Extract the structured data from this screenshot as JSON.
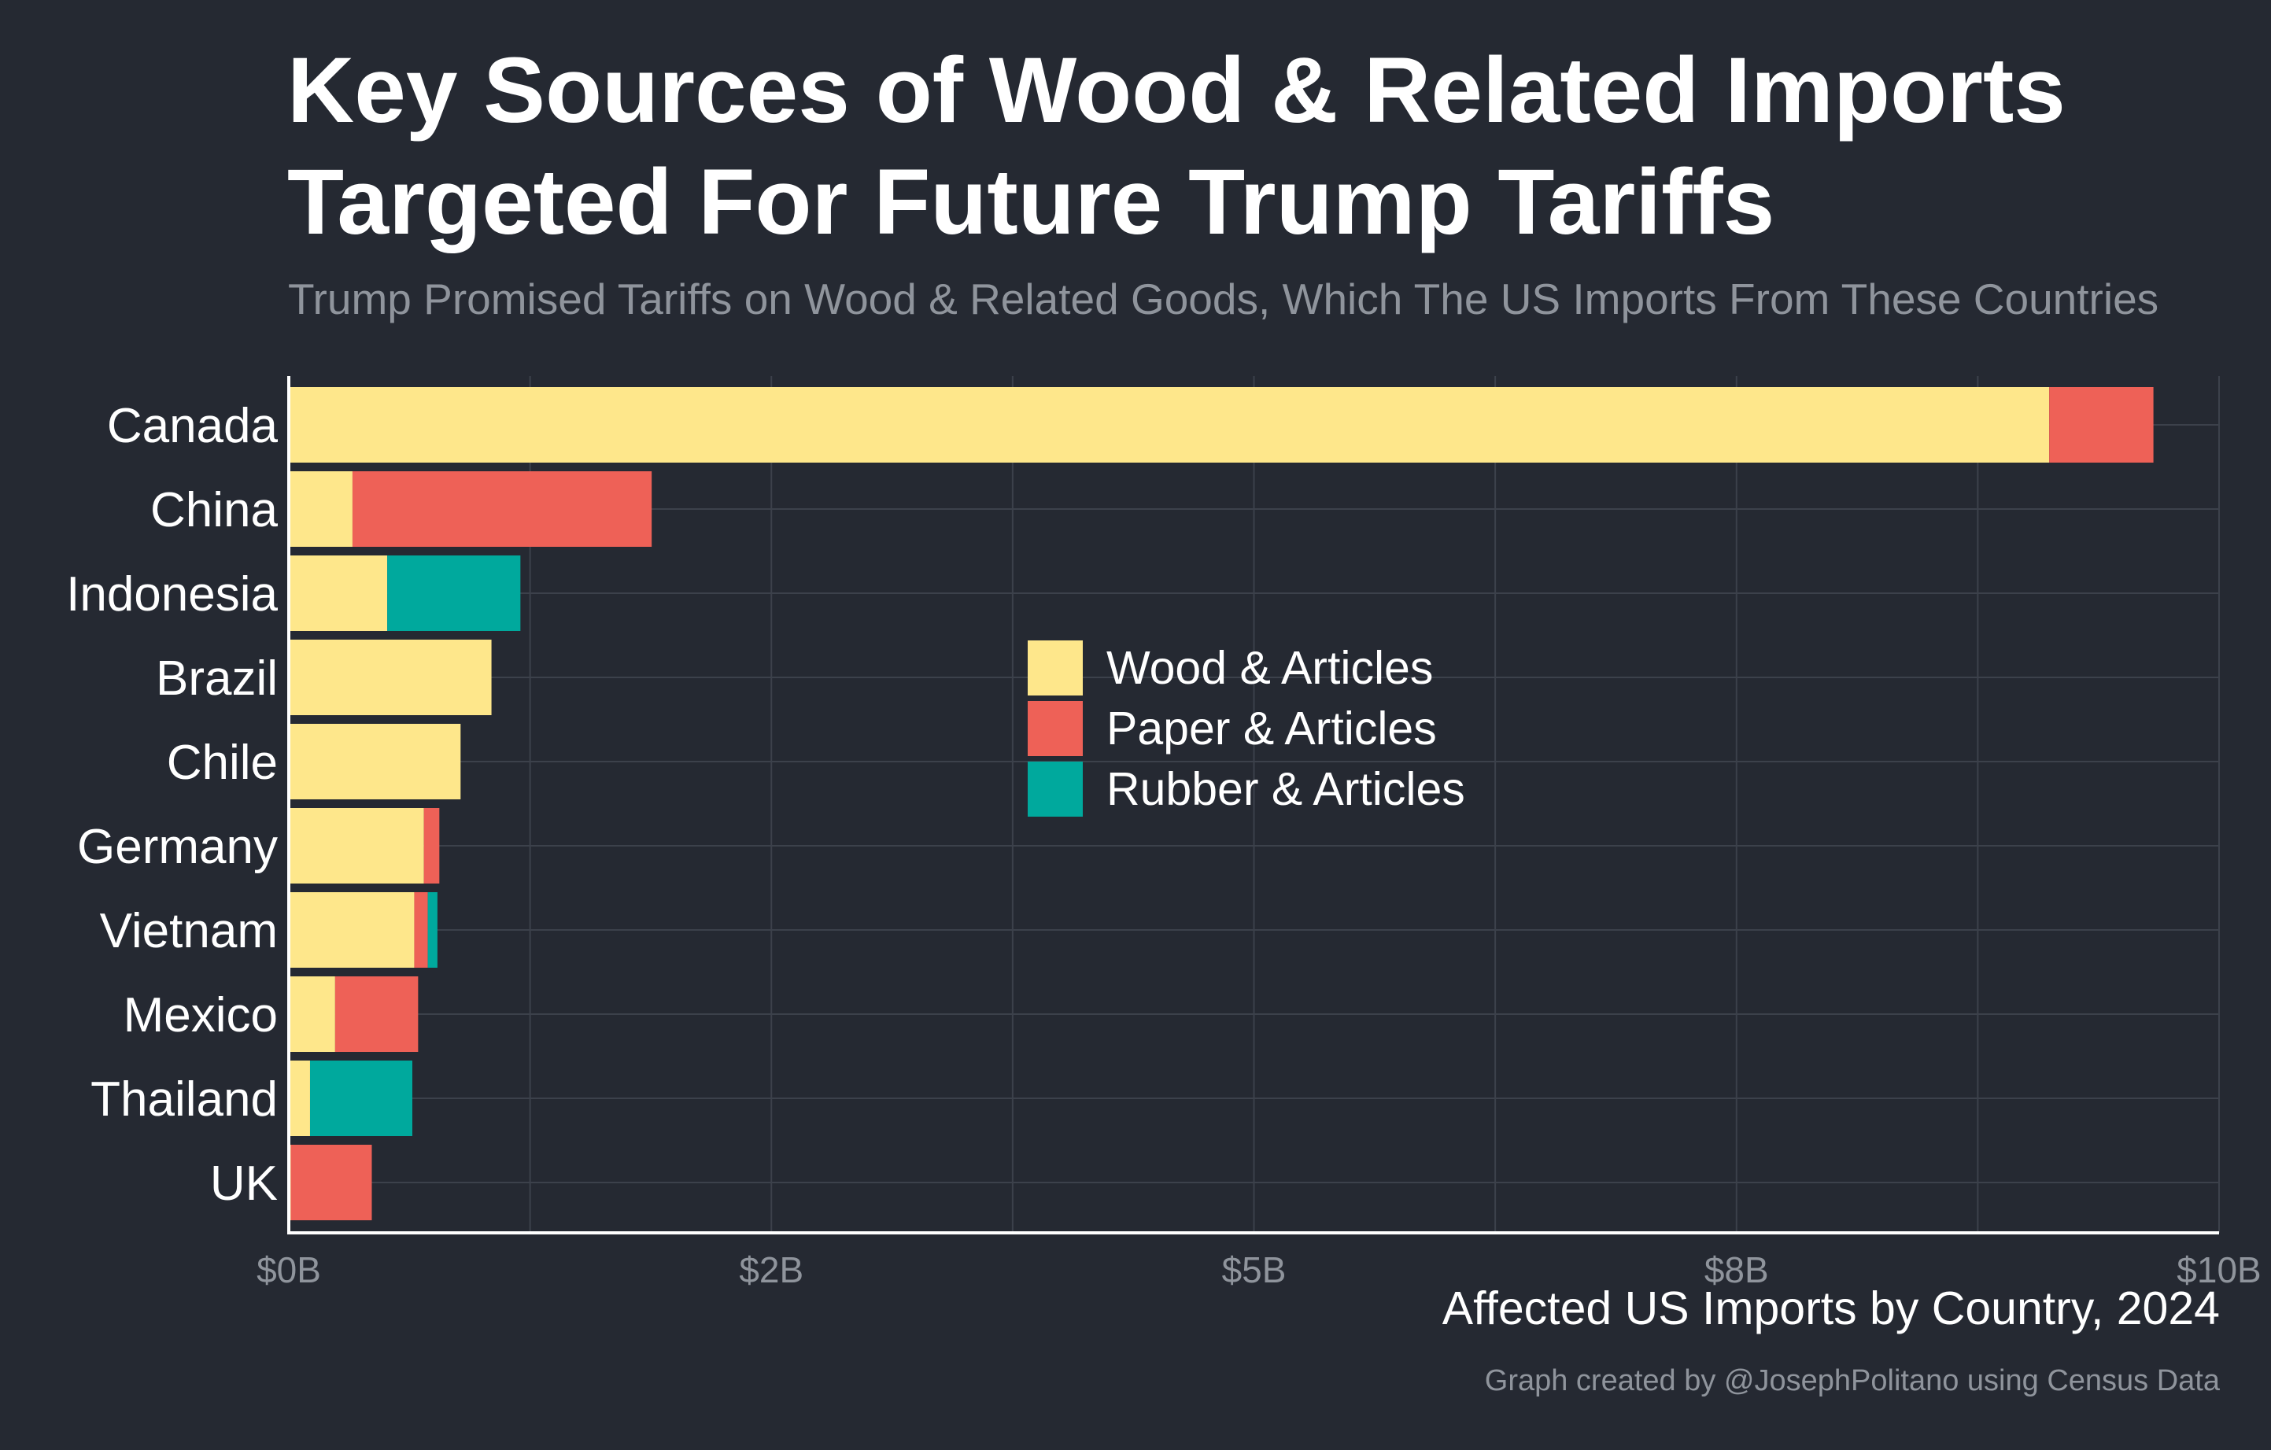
{
  "title": "Key Sources of Wood & Related Imports Targeted For Future Trump Tariffs",
  "subtitle": "Trump Promised Tariffs on Wood & Related Goods, Which The US Imports From These Countries",
  "caption": "Graph created by @JosephPolitano using Census Data",
  "colors": {
    "background": "#252932",
    "grid": "#3c414b",
    "axis": "#ffffff",
    "tick_text": "#8f949c",
    "wood": "#FEE78B",
    "paper": "#EE6157",
    "rubber": "#00A99D"
  },
  "chart_data": {
    "type": "bar",
    "orientation": "horizontal",
    "stacked": true,
    "categories": [
      "Canada",
      "China",
      "Indonesia",
      "Brazil",
      "Chile",
      "Germany",
      "Vietnam",
      "Mexico",
      "Thailand",
      "UK"
    ],
    "series": [
      {
        "name": "Wood & Articles",
        "color": "#FEE78B",
        "values": [
          9.12,
          0.33,
          0.51,
          1.05,
          0.89,
          0.7,
          0.65,
          0.24,
          0.11,
          0.01
        ]
      },
      {
        "name": "Paper & Articles",
        "color": "#EE6157",
        "values": [
          0.54,
          1.55,
          0.0,
          0.0,
          0.0,
          0.08,
          0.07,
          0.43,
          0.0,
          0.42
        ]
      },
      {
        "name": "Rubber & Articles",
        "color": "#00A99D",
        "values": [
          0.0,
          0.0,
          0.69,
          0.0,
          0.0,
          0.0,
          0.05,
          0.0,
          0.53,
          0.0
        ]
      }
    ],
    "xlim": [
      0,
      10
    ],
    "x_major_ticks": [
      0,
      2.5,
      5,
      7.5,
      10
    ],
    "x_minor_gridlines": [
      1.25,
      3.75,
      6.25,
      8.75
    ],
    "x_tick_labels": [
      "$0B",
      "$2B",
      "$5B",
      "$8B",
      "$10B"
    ],
    "xlabel": "Affected US Imports by Country, 2024",
    "ylabel": "",
    "legend_position": "center",
    "grid": true
  }
}
